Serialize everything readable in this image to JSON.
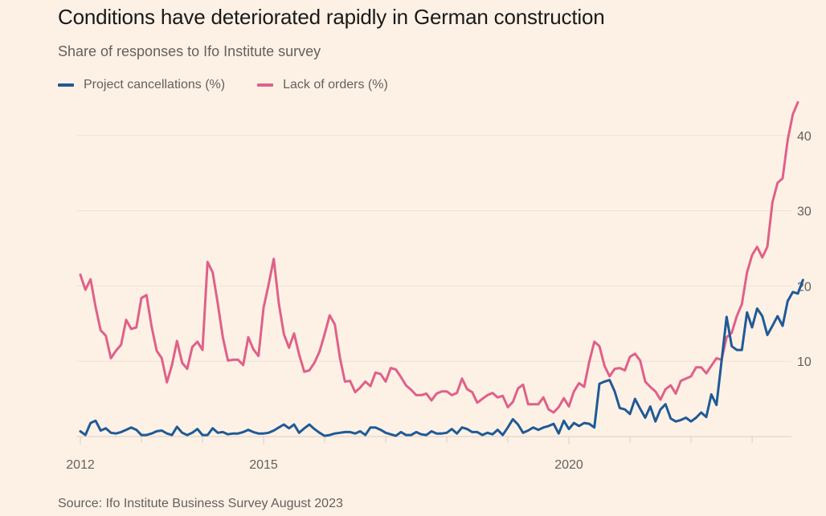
{
  "header": {
    "title": "Conditions have deteriorated rapidly in German construction",
    "subtitle": "Share of responses to Ifo Institute survey"
  },
  "footer": {
    "source": "Source: Ifo Institute Business Survey August 2023"
  },
  "colors": {
    "background": "#fdf1e6",
    "project_cancellations": "#1f5a96",
    "lack_of_orders": "#e0608a",
    "grid": "#ede2d6",
    "axis": "#d9cfc5"
  },
  "chart_data": {
    "type": "line",
    "title": "Conditions have deteriorated rapidly in German construction",
    "subtitle": "Share of responses to Ifo Institute survey",
    "xlabel": "",
    "ylabel": "",
    "x_start": "2012-01",
    "frequency": "monthly",
    "xlim": [
      2012.0,
      2023.7
    ],
    "ylim": [
      0,
      45
    ],
    "yticks": [
      10,
      20,
      30,
      40
    ],
    "ytick_side": "right",
    "xticks": [
      {
        "value": 2012,
        "label": "2012"
      },
      {
        "value": 2015,
        "label": "2015"
      },
      {
        "value": 2020,
        "label": "2020"
      }
    ],
    "minor_xticks": [
      2013,
      2014,
      2016,
      2017,
      2018,
      2019,
      2021,
      2022,
      2023
    ],
    "grid": true,
    "legend_position": "top-left",
    "series": [
      {
        "name": "Project cancellations (%)",
        "color": "#1f5a96",
        "values": [
          0.7,
          0.2,
          1.8,
          2.1,
          0.8,
          1.1,
          0.5,
          0.4,
          0.6,
          0.9,
          1.2,
          0.9,
          0.2,
          0.2,
          0.4,
          0.7,
          0.8,
          0.4,
          0.2,
          1.3,
          0.5,
          0.2,
          0.5,
          1.0,
          0.2,
          0.2,
          1.1,
          0.5,
          0.6,
          0.3,
          0.4,
          0.4,
          0.6,
          0.9,
          0.6,
          0.4,
          0.4,
          0.5,
          0.8,
          1.2,
          1.6,
          1.1,
          1.6,
          0.5,
          1.1,
          1.6,
          1.0,
          0.5,
          0.1,
          0.2,
          0.4,
          0.5,
          0.6,
          0.6,
          0.4,
          0.7,
          0.2,
          1.2,
          1.2,
          0.9,
          0.5,
          0.3,
          0.1,
          0.6,
          0.2,
          0.2,
          0.6,
          0.3,
          0.2,
          0.7,
          0.4,
          0.4,
          0.5,
          1.0,
          0.4,
          1.2,
          1.0,
          0.6,
          0.6,
          0.2,
          0.5,
          0.3,
          0.9,
          0.2,
          1.2,
          2.3,
          1.6,
          0.5,
          0.8,
          1.2,
          0.9,
          1.2,
          1.4,
          1.7,
          0.4,
          2.1,
          1.0,
          1.8,
          1.4,
          1.8,
          1.7,
          1.2,
          7.0,
          7.3,
          7.5,
          6.0,
          3.8,
          3.6,
          3.0,
          5.0,
          3.7,
          2.5,
          4.0,
          2.0,
          3.6,
          4.3,
          2.4,
          2.0,
          2.2,
          2.5,
          2.0,
          2.5,
          3.2,
          2.6,
          5.6,
          4.2,
          10.0,
          15.9,
          12.0,
          11.5,
          11.5,
          16.5,
          14.5,
          17.0,
          16.0,
          13.5,
          14.7,
          16.0,
          14.7,
          18.0,
          19.2,
          19.0,
          20.8
        ]
      },
      {
        "name": "Lack of orders (%)",
        "color": "#e0608a",
        "values": [
          21.5,
          19.5,
          20.9,
          17.2,
          14.1,
          13.4,
          10.4,
          11.4,
          12.2,
          15.5,
          14.3,
          14.5,
          18.4,
          18.8,
          14.6,
          11.4,
          10.4,
          7.2,
          9.5,
          12.7,
          9.8,
          9.0,
          11.9,
          12.6,
          11.5,
          23.2,
          21.8,
          17.7,
          13.2,
          10.1,
          10.2,
          10.2,
          9.5,
          13.2,
          11.6,
          10.7,
          17.1,
          20.2,
          23.6,
          17.7,
          13.6,
          11.8,
          13.7,
          10.9,
          8.6,
          8.8,
          9.8,
          11.3,
          13.6,
          16.1,
          14.9,
          10.5,
          7.3,
          7.4,
          5.9,
          6.5,
          7.3,
          6.7,
          8.5,
          8.3,
          7.3,
          9.1,
          8.9,
          7.9,
          6.8,
          6.2,
          5.5,
          5.5,
          5.7,
          4.8,
          5.7,
          6.0,
          6.0,
          5.5,
          5.8,
          7.7,
          6.3,
          5.9,
          4.5,
          5.0,
          5.5,
          5.8,
          5.2,
          5.4,
          3.9,
          4.6,
          6.4,
          6.9,
          4.3,
          4.3,
          4.3,
          5.2,
          3.6,
          3.2,
          3.9,
          5.1,
          4.0,
          6.0,
          7.1,
          6.6,
          9.9,
          12.6,
          12.0,
          9.4,
          8.0,
          9.0,
          9.1,
          8.8,
          10.6,
          11.0,
          10.1,
          7.3,
          6.6,
          6.0,
          4.9,
          6.3,
          6.8,
          5.7,
          7.4,
          7.7,
          8.0,
          9.2,
          9.2,
          8.4,
          9.4,
          10.4,
          10.2,
          13.2,
          13.8,
          16.0,
          17.6,
          21.8,
          24.1,
          25.2,
          23.8,
          25.2,
          31.1,
          33.7,
          34.3,
          39.4,
          42.8,
          44.4
        ]
      }
    ]
  }
}
